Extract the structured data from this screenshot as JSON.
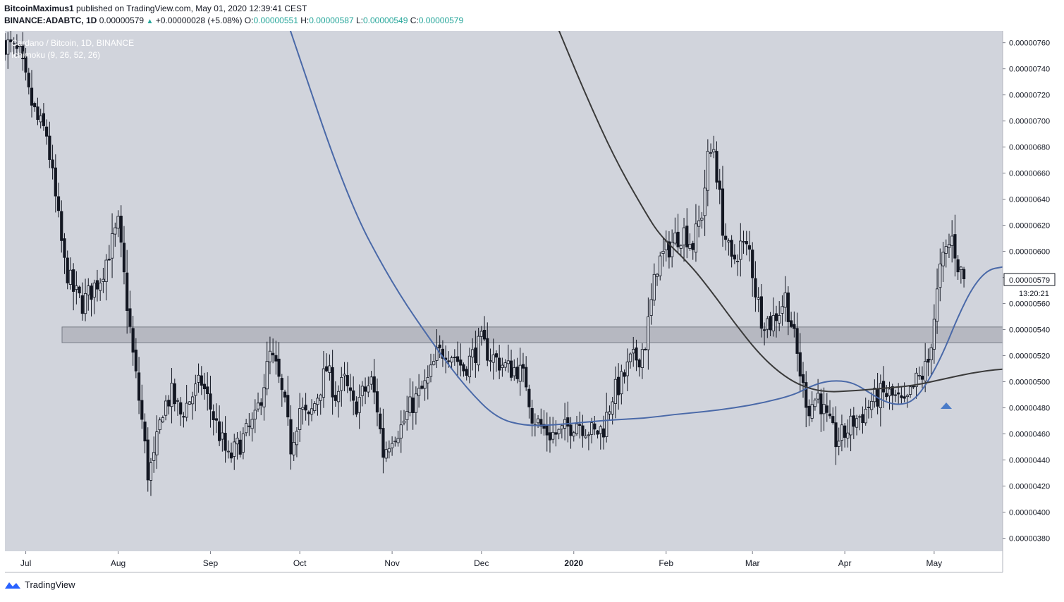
{
  "header": {
    "author": "BitcoinMaximus1",
    "published": "published on TradingView.com, May 01, 2020 12:39:41 CEST",
    "symbol": "BINANCE:ADABTC, 1D",
    "last": "0.00000579",
    "change": "+0.00000028 (+5.08%)",
    "o_label": "O:",
    "o": "0.00000551",
    "h_label": "H:",
    "h": "0.00000587",
    "l_label": "L:",
    "l": "0.00000549",
    "c_label": "C:",
    "c": "0.00000579"
  },
  "legend": {
    "line1": "Cardano / Bitcoin, 1D, BINANCE",
    "line2": "Ichimoku (9, 26, 52, 26)"
  },
  "price_badge": "0.00000579",
  "countdown": "13:20:21",
  "footer": {
    "brand": "TradingView"
  },
  "colors": {
    "plot_bg": "#d1d4dc",
    "candle": "#131722",
    "ma_fast": "#4a69a8",
    "ma_slow": "#3a3a3a",
    "zone_fill": "#b2b5be",
    "zone_stroke": "#787b86",
    "arrow": "#4a7bc8"
  },
  "chart_data": {
    "type": "candlestick",
    "title": "Cardano / Bitcoin, 1D, BINANCE",
    "ylim": [
      3.7e-06,
      7.69e-06
    ],
    "y_ticks": [
      "0.00000760",
      "0.00000740",
      "0.00000720",
      "0.00000700",
      "0.00000680",
      "0.00000660",
      "0.00000640",
      "0.00000620",
      "0.00000600",
      "0.00000580",
      "0.00000560",
      "0.00000540",
      "0.00000520",
      "0.00000500",
      "0.00000480",
      "0.00000460",
      "0.00000440",
      "0.00000420",
      "0.00000400",
      "0.00000380"
    ],
    "x_ticks": [
      "Jul",
      "Aug",
      "Sep",
      "Oct",
      "Nov",
      "Dec",
      "2020",
      "Feb",
      "Mar",
      "Apr",
      "May"
    ],
    "x_tick_days": [
      2,
      33,
      64,
      94,
      125,
      155,
      186,
      217,
      246,
      277,
      307
    ],
    "x_range_days": [
      -5,
      330
    ],
    "support_zone": [
      5.3e-06,
      5.42e-06
    ],
    "close_keypoints": [
      [
        -5,
        7.6e-06
      ],
      [
        0,
        7.5e-06
      ],
      [
        3,
        7.2e-06
      ],
      [
        6,
        7e-06
      ],
      [
        9,
        6.9e-06
      ],
      [
        12,
        6.4e-06
      ],
      [
        15,
        5.9e-06
      ],
      [
        18,
        5.7e-06
      ],
      [
        21,
        5.6e-06
      ],
      [
        24,
        5.7e-06
      ],
      [
        27,
        5.8e-06
      ],
      [
        30,
        6e-06
      ],
      [
        33,
        6.2e-06
      ],
      [
        36,
        5.6e-06
      ],
      [
        38,
        5.2e-06
      ],
      [
        41,
        4.7e-06
      ],
      [
        43,
        4.3e-06
      ],
      [
        45,
        4.4e-06
      ],
      [
        48,
        4.8e-06
      ],
      [
        51,
        4.9e-06
      ],
      [
        54,
        4.75e-06
      ],
      [
        58,
        4.9e-06
      ],
      [
        61,
        5e-06
      ],
      [
        64,
        4.8e-06
      ],
      [
        67,
        4.6e-06
      ],
      [
        70,
        4.4e-06
      ],
      [
        73,
        4.5e-06
      ],
      [
        76,
        4.6e-06
      ],
      [
        79,
        4.7e-06
      ],
      [
        82,
        5e-06
      ],
      [
        84,
        5.2e-06
      ],
      [
        86,
        5.1e-06
      ],
      [
        89,
        4.8e-06
      ],
      [
        91,
        4.5e-06
      ],
      [
        94,
        4.8e-06
      ],
      [
        97,
        4.7e-06
      ],
      [
        100,
        4.9e-06
      ],
      [
        103,
        5.1e-06
      ],
      [
        106,
        4.9e-06
      ],
      [
        109,
        5e-06
      ],
      [
        112,
        4.8e-06
      ],
      [
        115,
        4.9e-06
      ],
      [
        118,
        5e-06
      ],
      [
        120,
        4.8e-06
      ],
      [
        122,
        4.45e-06
      ],
      [
        125,
        4.6e-06
      ],
      [
        128,
        4.65e-06
      ],
      [
        131,
        4.8e-06
      ],
      [
        134,
        4.9e-06
      ],
      [
        137,
        5e-06
      ],
      [
        140,
        5.2e-06
      ],
      [
        143,
        5.25e-06
      ],
      [
        146,
        5.2e-06
      ],
      [
        149,
        5.1e-06
      ],
      [
        152,
        5.2e-06
      ],
      [
        155,
        5.3e-06
      ],
      [
        158,
        5.2e-06
      ],
      [
        161,
        5.15e-06
      ],
      [
        164,
        5.1e-06
      ],
      [
        167,
        5.1e-06
      ],
      [
        170,
        5e-06
      ],
      [
        172,
        4.75e-06
      ],
      [
        175,
        4.65e-06
      ],
      [
        178,
        4.6e-06
      ],
      [
        181,
        4.6e-06
      ],
      [
        184,
        4.65e-06
      ],
      [
        187,
        4.7e-06
      ],
      [
        190,
        4.65e-06
      ],
      [
        193,
        4.6e-06
      ],
      [
        196,
        4.65e-06
      ],
      [
        199,
        4.9e-06
      ],
      [
        202,
        5e-06
      ],
      [
        205,
        5.15e-06
      ],
      [
        208,
        5.2e-06
      ],
      [
        210,
        5.3e-06
      ],
      [
        212,
        5.6e-06
      ],
      [
        214,
        5.9e-06
      ],
      [
        217,
        6e-06
      ],
      [
        220,
        6.1e-06
      ],
      [
        223,
        6.15e-06
      ],
      [
        226,
        6.05e-06
      ],
      [
        229,
        6.3e-06
      ],
      [
        231,
        6.7e-06
      ],
      [
        233,
        6.8e-06
      ],
      [
        236,
        6.2e-06
      ],
      [
        239,
        5.9e-06
      ],
      [
        242,
        6.05e-06
      ],
      [
        245,
        6e-06
      ],
      [
        247,
        5.7e-06
      ],
      [
        249,
        5.5e-06
      ],
      [
        252,
        5.45e-06
      ],
      [
        255,
        5.55e-06
      ],
      [
        257,
        5.65e-06
      ],
      [
        259,
        5.45e-06
      ],
      [
        261,
        5.2e-06
      ],
      [
        263,
        4.95e-06
      ],
      [
        265,
        4.8e-06
      ],
      [
        268,
        4.9e-06
      ],
      [
        271,
        4.7e-06
      ],
      [
        274,
        4.55e-06
      ],
      [
        277,
        4.6e-06
      ],
      [
        280,
        4.7e-06
      ],
      [
        283,
        4.75e-06
      ],
      [
        286,
        4.85e-06
      ],
      [
        289,
        4.9e-06
      ],
      [
        292,
        4.9e-06
      ],
      [
        295,
        4.85e-06
      ],
      [
        297,
        4.8e-06
      ],
      [
        299,
        4.9e-06
      ],
      [
        301,
        5e-06
      ],
      [
        303,
        5.05e-06
      ],
      [
        305,
        5.15e-06
      ],
      [
        307,
        5.5e-06
      ],
      [
        309,
        5.85e-06
      ],
      [
        311,
        6e-06
      ],
      [
        313,
        6.1e-06
      ],
      [
        315,
        5.9e-06
      ],
      [
        317,
        5.79e-06
      ]
    ],
    "series": [
      {
        "type": "line",
        "color": "#4a69a8",
        "points": [
          [
            90,
            7.75e-06
          ],
          [
            110,
            6.4e-06
          ],
          [
            125,
            5.75e-06
          ],
          [
            140,
            5.25e-06
          ],
          [
            150,
            4.95e-06
          ],
          [
            160,
            4.72e-06
          ],
          [
            170,
            4.66e-06
          ],
          [
            180,
            4.67e-06
          ],
          [
            190,
            4.69e-06
          ],
          [
            200,
            4.71e-06
          ],
          [
            210,
            4.72e-06
          ],
          [
            220,
            4.75e-06
          ],
          [
            230,
            4.77e-06
          ],
          [
            240,
            4.8e-06
          ],
          [
            250,
            4.84e-06
          ],
          [
            260,
            4.9e-06
          ],
          [
            265,
            4.96e-06
          ],
          [
            270,
            5e-06
          ],
          [
            275,
            5.01e-06
          ],
          [
            280,
            4.99e-06
          ],
          [
            285,
            4.92e-06
          ],
          [
            290,
            4.85e-06
          ],
          [
            295,
            4.82e-06
          ],
          [
            300,
            4.85e-06
          ],
          [
            305,
            5e-06
          ],
          [
            310,
            5.22e-06
          ],
          [
            315,
            5.5e-06
          ],
          [
            320,
            5.73e-06
          ],
          [
            325,
            5.86e-06
          ],
          [
            330,
            5.88e-06
          ]
        ]
      },
      {
        "type": "line",
        "color": "#3a3a3a",
        "points": [
          [
            180,
            7.75e-06
          ],
          [
            190,
            7.2e-06
          ],
          [
            200,
            6.7e-06
          ],
          [
            210,
            6.3e-06
          ],
          [
            215,
            6.12e-06
          ],
          [
            225,
            5.9e-06
          ],
          [
            232,
            5.7e-06
          ],
          [
            240,
            5.45e-06
          ],
          [
            248,
            5.22e-06
          ],
          [
            255,
            5.07e-06
          ],
          [
            262,
            4.97e-06
          ],
          [
            270,
            4.92e-06
          ],
          [
            280,
            4.93e-06
          ],
          [
            290,
            4.95e-06
          ],
          [
            300,
            4.97e-06
          ],
          [
            310,
            5.02e-06
          ],
          [
            320,
            5.07e-06
          ],
          [
            330,
            5.1e-06
          ],
          [
            340,
            5.1e-06
          ],
          [
            350,
            5.1e-06
          ]
        ]
      }
    ]
  }
}
